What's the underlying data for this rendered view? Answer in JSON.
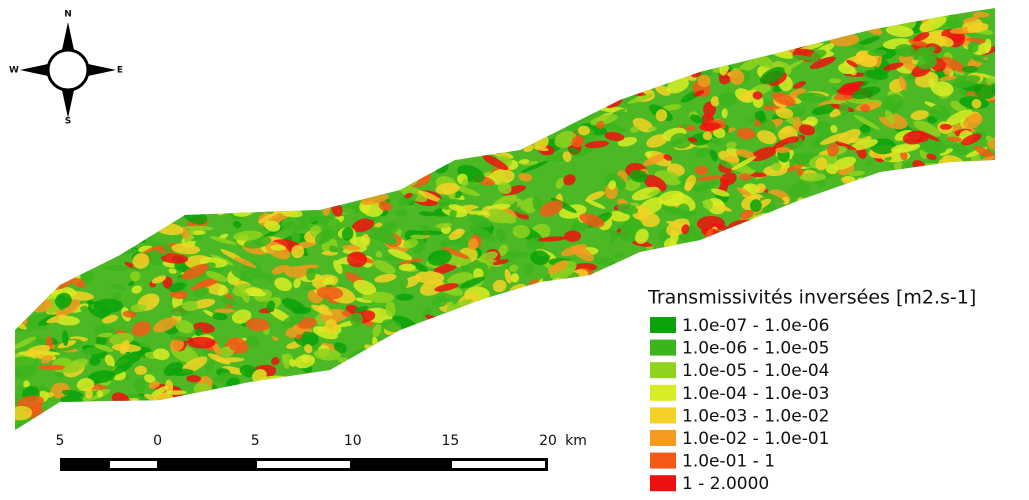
{
  "compass": {
    "north": "N",
    "south": "S",
    "west": "W",
    "east": "E"
  },
  "scale_bar": {
    "labels": [
      "5",
      "0",
      "5",
      "10",
      "15",
      "20"
    ],
    "unit": "km"
  },
  "legend": {
    "title": "Transmissivités inversées [m2.s-1]",
    "items": [
      {
        "label": "1.0e-07 - 1.0e-06",
        "color": "#0ba20b"
      },
      {
        "label": "1.0e-06 - 1.0e-05",
        "color": "#3cb41c"
      },
      {
        "label": "1.0e-05 - 1.0e-04",
        "color": "#8fd21f"
      },
      {
        "label": "1.0e-04 - 1.0e-03",
        "color": "#d8ec25"
      },
      {
        "label": "1.0e-03 - 1.0e-02",
        "color": "#f4d224"
      },
      {
        "label": "1.0e-02 - 1.0e-01",
        "color": "#f59a1e"
      },
      {
        "label": "1.0e-01 - 1",
        "color": "#f25a16"
      },
      {
        "label": " 1 - 2.0000",
        "color": "#ee1010"
      }
    ]
  }
}
